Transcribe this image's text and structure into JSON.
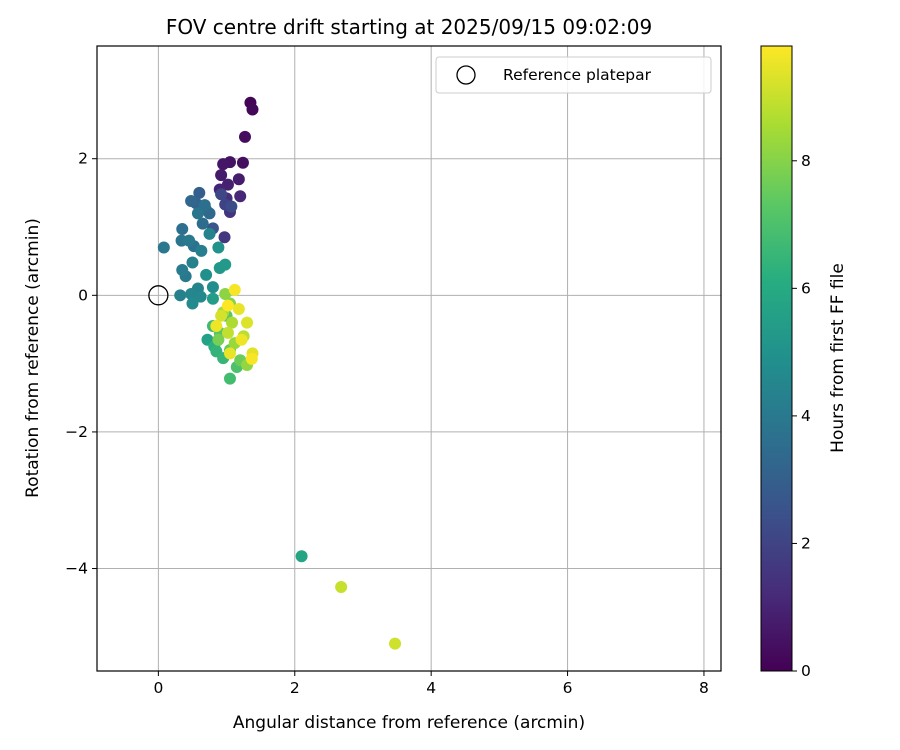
{
  "chart_data": {
    "type": "scatter",
    "title": "FOV centre drift starting at 2025/09/15 09:02:09",
    "xlabel": "Angular distance from reference (arcmin)",
    "ylabel": "Rotation from reference (arcmin)",
    "xlim": [
      -0.9,
      8.25
    ],
    "ylim": [
      -5.5,
      3.65
    ],
    "xticks": [
      0,
      2,
      4,
      6,
      8
    ],
    "yticks": [
      -4,
      -2,
      0,
      2
    ],
    "grid": true,
    "legend": {
      "label": "Reference platepar",
      "placement": "top-right"
    },
    "reference_point": {
      "x": 0,
      "y": 0
    },
    "colorbar": {
      "label": "Hours from first FF file",
      "range": [
        0,
        9.8
      ],
      "ticks": [
        0,
        2,
        4,
        6,
        8
      ],
      "colormap": "viridis"
    },
    "series": [
      {
        "name": "FOV centre drift",
        "points": [
          {
            "x": 1.35,
            "y": 2.82,
            "t": 0.1
          },
          {
            "x": 1.38,
            "y": 2.72,
            "t": 0.2
          },
          {
            "x": 1.27,
            "y": 2.32,
            "t": 0.3
          },
          {
            "x": 1.24,
            "y": 1.94,
            "t": 0.4
          },
          {
            "x": 1.05,
            "y": 1.95,
            "t": 0.5
          },
          {
            "x": 0.95,
            "y": 1.92,
            "t": 0.6
          },
          {
            "x": 0.92,
            "y": 1.76,
            "t": 0.7
          },
          {
            "x": 1.18,
            "y": 1.7,
            "t": 0.8
          },
          {
            "x": 1.02,
            "y": 1.62,
            "t": 0.9
          },
          {
            "x": 0.9,
            "y": 1.55,
            "t": 1.0
          },
          {
            "x": 1.2,
            "y": 1.45,
            "t": 1.1
          },
          {
            "x": 1.0,
            "y": 1.42,
            "t": 1.3
          },
          {
            "x": 1.05,
            "y": 1.22,
            "t": 1.5
          },
          {
            "x": 0.97,
            "y": 0.85,
            "t": 1.6
          },
          {
            "x": 0.98,
            "y": 1.33,
            "t": 2.0
          },
          {
            "x": 0.92,
            "y": 1.48,
            "t": 2.1
          },
          {
            "x": 1.07,
            "y": 1.3,
            "t": 2.3
          },
          {
            "x": 0.8,
            "y": 0.98,
            "t": 2.6
          },
          {
            "x": 0.6,
            "y": 1.5,
            "t": 3.0
          },
          {
            "x": 0.55,
            "y": 1.35,
            "t": 3.1
          },
          {
            "x": 0.7,
            "y": 1.25,
            "t": 3.2
          },
          {
            "x": 0.48,
            "y": 1.38,
            "t": 3.3
          },
          {
            "x": 0.75,
            "y": 1.2,
            "t": 3.4
          },
          {
            "x": 0.65,
            "y": 1.05,
            "t": 3.5
          },
          {
            "x": 0.35,
            "y": 0.97,
            "t": 3.6
          },
          {
            "x": 0.68,
            "y": 1.32,
            "t": 3.6
          },
          {
            "x": 0.52,
            "y": 0.72,
            "t": 3.7
          },
          {
            "x": 0.34,
            "y": 0.8,
            "t": 3.8
          },
          {
            "x": 0.58,
            "y": 1.2,
            "t": 3.8
          },
          {
            "x": 0.08,
            "y": 0.7,
            "t": 3.9
          },
          {
            "x": 0.45,
            "y": 0.8,
            "t": 4.0
          },
          {
            "x": 0.4,
            "y": 0.28,
            "t": 4.0
          },
          {
            "x": 0.35,
            "y": 0.37,
            "t": 4.1
          },
          {
            "x": 0.63,
            "y": 0.65,
            "t": 4.2
          },
          {
            "x": 0.5,
            "y": 0.48,
            "t": 4.3
          },
          {
            "x": 0.32,
            "y": 0.0,
            "t": 4.3
          },
          {
            "x": 0.58,
            "y": 0.1,
            "t": 4.4
          },
          {
            "x": 0.75,
            "y": 0.9,
            "t": 4.4
          },
          {
            "x": 0.48,
            "y": 0.02,
            "t": 4.5
          },
          {
            "x": 0.62,
            "y": -0.02,
            "t": 4.6
          },
          {
            "x": 0.5,
            "y": -0.12,
            "t": 4.7
          },
          {
            "x": 0.8,
            "y": 0.12,
            "t": 4.8
          },
          {
            "x": 0.7,
            "y": 0.3,
            "t": 4.9
          },
          {
            "x": 0.88,
            "y": 0.7,
            "t": 5.0
          },
          {
            "x": 0.9,
            "y": 0.4,
            "t": 5.2
          },
          {
            "x": 0.98,
            "y": 0.45,
            "t": 5.3
          },
          {
            "x": 0.8,
            "y": -0.05,
            "t": 5.4
          },
          {
            "x": 0.72,
            "y": -0.65,
            "t": 5.6
          },
          {
            "x": 2.1,
            "y": -3.82,
            "t": 5.8
          },
          {
            "x": 0.82,
            "y": -0.75,
            "t": 6.2
          },
          {
            "x": 0.85,
            "y": -0.82,
            "t": 6.4
          },
          {
            "x": 0.95,
            "y": -0.92,
            "t": 6.5
          },
          {
            "x": 0.8,
            "y": -0.45,
            "t": 6.7
          },
          {
            "x": 1.05,
            "y": -1.22,
            "t": 6.8
          },
          {
            "x": 1.15,
            "y": -1.05,
            "t": 7.0
          },
          {
            "x": 0.9,
            "y": -0.55,
            "t": 7.2
          },
          {
            "x": 1.0,
            "y": -0.3,
            "t": 7.3
          },
          {
            "x": 1.05,
            "y": -0.8,
            "t": 7.5
          },
          {
            "x": 1.2,
            "y": -0.95,
            "t": 7.6
          },
          {
            "x": 0.88,
            "y": -0.65,
            "t": 7.8
          },
          {
            "x": 1.05,
            "y": -0.12,
            "t": 8.0
          },
          {
            "x": 0.98,
            "y": 0.02,
            "t": 8.1
          },
          {
            "x": 1.3,
            "y": -1.02,
            "t": 8.2
          },
          {
            "x": 1.12,
            "y": -0.7,
            "t": 8.3
          },
          {
            "x": 0.95,
            "y": -0.25,
            "t": 8.5
          },
          {
            "x": 1.08,
            "y": -0.4,
            "t": 8.6
          },
          {
            "x": 1.25,
            "y": -0.6,
            "t": 8.8
          },
          {
            "x": 1.02,
            "y": -0.55,
            "t": 8.9
          },
          {
            "x": 2.68,
            "y": -4.27,
            "t": 9.0
          },
          {
            "x": 3.47,
            "y": -5.1,
            "t": 9.1
          },
          {
            "x": 0.92,
            "y": -0.3,
            "t": 9.2
          },
          {
            "x": 1.3,
            "y": -0.4,
            "t": 9.3
          },
          {
            "x": 1.38,
            "y": -0.85,
            "t": 9.4
          },
          {
            "x": 1.18,
            "y": -0.2,
            "t": 9.5
          },
          {
            "x": 1.05,
            "y": -0.85,
            "t": 9.5
          },
          {
            "x": 0.85,
            "y": -0.45,
            "t": 9.6
          },
          {
            "x": 1.22,
            "y": -0.65,
            "t": 9.6
          },
          {
            "x": 1.12,
            "y": 0.08,
            "t": 9.7
          },
          {
            "x": 1.37,
            "y": -0.93,
            "t": 9.7
          },
          {
            "x": 1.02,
            "y": -0.15,
            "t": 9.8
          }
        ]
      }
    ]
  }
}
